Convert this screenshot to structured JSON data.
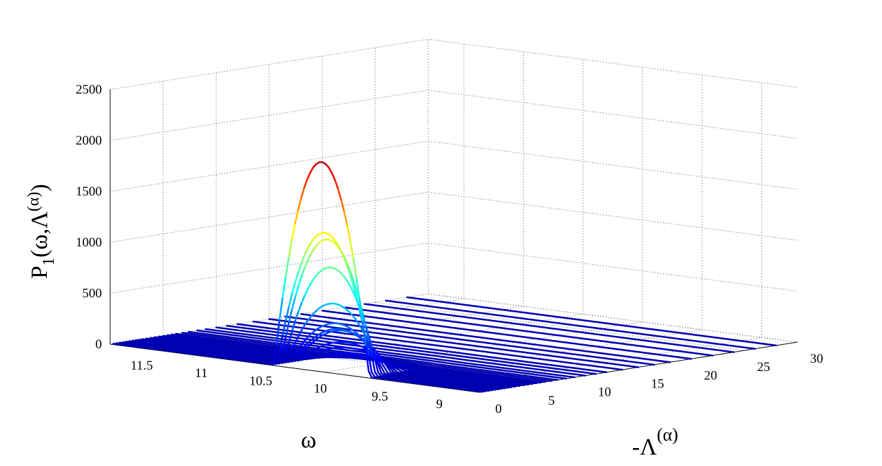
{
  "chart_data": {
    "type": "line",
    "title": "",
    "projection": "3d-waterfall",
    "xlabel": "ω",
    "ylabel": "-Λ(α)",
    "zlabel": "P1(ω,Λ(α))",
    "labels": {
      "z_main": "P",
      "z_sub": "1",
      "z_paren_open": "(ω,Λ",
      "z_sup": "(α)",
      "z_paren_close": ")",
      "y_main": "-Λ",
      "y_sup": "(α)",
      "x_main": "ω"
    },
    "x_axis": {
      "range": [
        8.7,
        11.8
      ],
      "ticks": [
        11.5,
        11,
        10.5,
        10,
        9.5,
        9
      ],
      "tick_labels": [
        "11.5",
        "11",
        "10.5",
        "10",
        "9.5",
        "9"
      ]
    },
    "y_axis": {
      "range": [
        0,
        30
      ],
      "ticks": [
        0,
        5,
        10,
        15,
        20,
        25,
        30
      ],
      "tick_labels": [
        "0",
        "5",
        "10",
        "15",
        "20",
        "25",
        "30"
      ]
    },
    "z_axis": {
      "range": [
        0,
        2500
      ],
      "ticks": [
        0,
        500,
        1000,
        1500,
        2000,
        2500
      ],
      "tick_labels": [
        "0",
        "500",
        "1000",
        "1500",
        "2000",
        "2500"
      ]
    },
    "grid": true,
    "colormap": "jet",
    "peak_omega": 10.05,
    "peak_halfwidth": 0.4,
    "omega_span": [
      8.7,
      11.8
    ],
    "curve_lambdas": [
      0.3,
      0.6,
      0.9,
      1.2,
      1.5,
      1.8,
      2.1,
      2.4,
      2.7,
      3.0,
      3.4,
      3.8,
      4.2,
      4.6,
      5.0,
      5.4,
      5.8,
      6.2,
      6.8,
      7.4,
      8.2,
      9.0,
      10.0,
      11.0,
      12.0,
      13.5,
      15.0,
      16.5,
      18.0,
      20.0,
      22.0,
      24.0,
      26.0,
      28.0
    ],
    "curve_peaks": [
      2050,
      1350,
      1280,
      1000,
      640,
      440,
      380,
      360,
      240,
      180,
      120,
      90,
      60,
      40,
      30,
      20,
      12,
      8,
      5,
      4,
      3,
      2,
      2,
      1,
      1,
      1,
      0,
      0,
      0,
      0,
      0,
      0,
      0,
      0
    ]
  }
}
